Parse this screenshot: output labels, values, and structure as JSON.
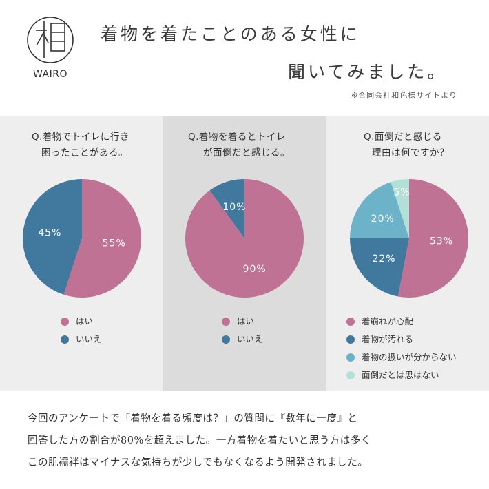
{
  "brand": {
    "logo_text": "WAIRO"
  },
  "header": {
    "title_line1": "着物を着たことのある女性に",
    "title_line2": "聞いてみました。",
    "source_note": "※合同会社和色様サイトより"
  },
  "colors": {
    "pink": "#c07295",
    "blue": "#41799e",
    "light_blue": "#6cb2c9",
    "mint": "#b2e0d7",
    "panel_light": "#eeeeee",
    "panel_dark": "#dcdcdc"
  },
  "chart_data": [
    {
      "type": "pie",
      "title_lines": [
        "Q.着物でトイレに行き",
        "困ったことがある。"
      ],
      "slices": [
        {
          "name": "はい",
          "value": 55,
          "label": "55%",
          "color": "#c07295"
        },
        {
          "name": "いいえ",
          "value": 45,
          "label": "45%",
          "color": "#41799e"
        }
      ],
      "legend_position": "bottom"
    },
    {
      "type": "pie",
      "title_lines": [
        "Q.着物を着るとトイレ",
        "が面倒だと感じる。"
      ],
      "slices": [
        {
          "name": "はい",
          "value": 90,
          "label": "90%",
          "color": "#c07295"
        },
        {
          "name": "いいえ",
          "value": 10,
          "label": "10%",
          "color": "#41799e"
        }
      ],
      "legend_position": "bottom"
    },
    {
      "type": "pie",
      "title_lines": [
        "Q.面倒だと感じる",
        "理由は何ですか？"
      ],
      "slices": [
        {
          "name": "着崩れが心配",
          "value": 53,
          "label": "53%",
          "color": "#c07295"
        },
        {
          "name": "着物が汚れる",
          "value": 22,
          "label": "22%",
          "color": "#41799e"
        },
        {
          "name": "着物の扱いが分からない",
          "value": 20,
          "label": "20%",
          "color": "#6cb2c9"
        },
        {
          "name": "面倒だとは思はない",
          "value": 5,
          "label": "5%",
          "color": "#b2e0d7"
        }
      ],
      "legend_position": "bottom"
    }
  ],
  "footer": {
    "lines": [
      "今回のアンケートで「着物を着る頻度は？」の質問に『数年に一度』と",
      "回答した方の割合が80%を超えました。一方着物を着たいと思う方は多く",
      "この肌襦袢はマイナスな気持ちが少しでもなくなるよう開発されました。"
    ]
  }
}
